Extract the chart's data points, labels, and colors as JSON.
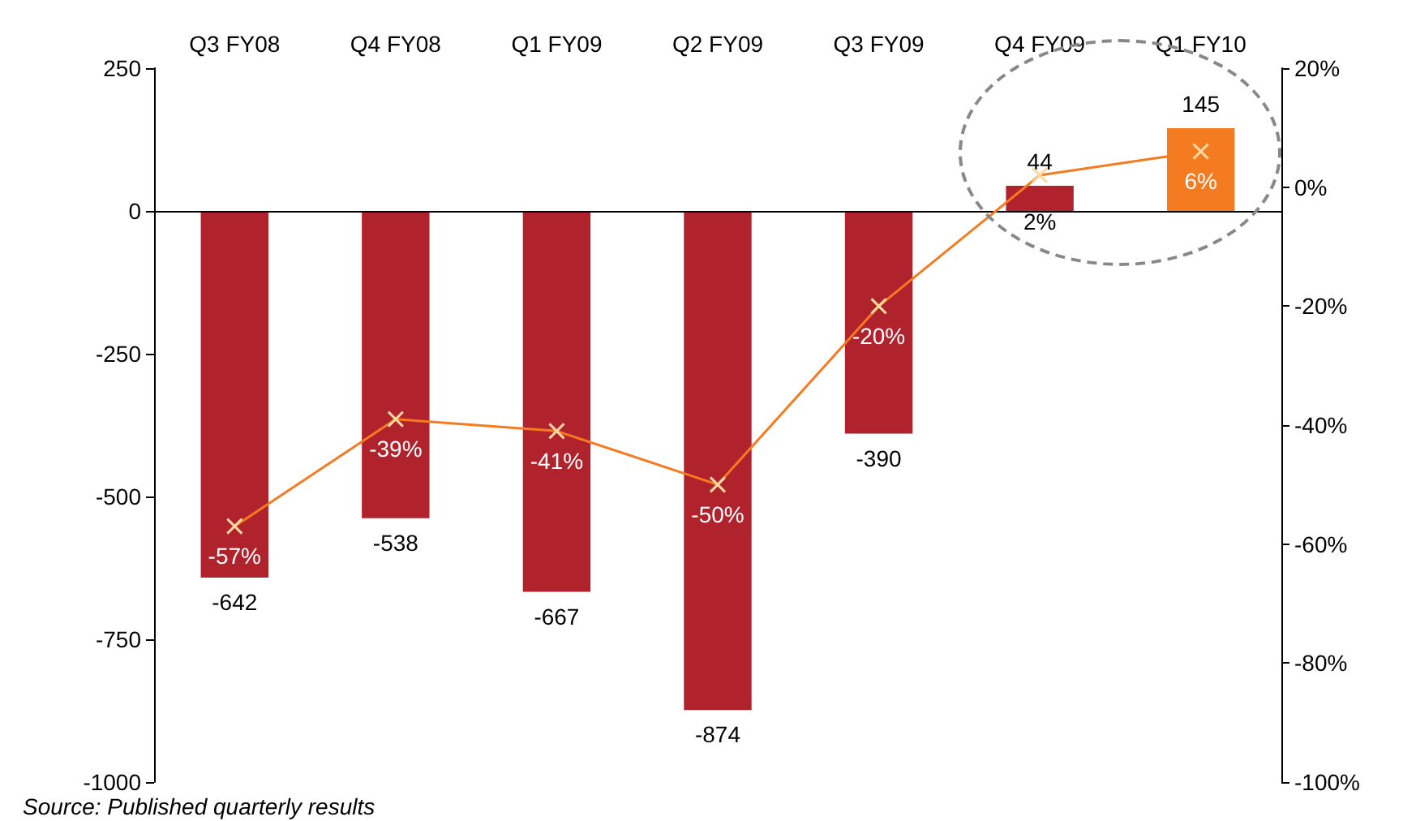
{
  "chart_data": {
    "type": "bar",
    "categories": [
      "Q3 FY08",
      "Q4 FY08",
      "Q1 FY09",
      "Q2 FY09",
      "Q3 FY09",
      "Q4 FY09",
      "Q1 FY10"
    ],
    "series": [
      {
        "colors": [
          "#b0222c",
          "#b0222c",
          "#b0222c",
          "#b0222c",
          "#b0222c",
          "#b0222c",
          "#f47b20"
        ],
        "values": [
          -642,
          -538,
          -667,
          -874,
          -390,
          44,
          145
        ],
        "data_labels": true
      },
      {
        "type": "line",
        "axis": "y2",
        "color": "#f47b20",
        "marker": "cross",
        "values": [
          -57,
          -39,
          -41,
          -50,
          -20,
          2,
          6
        ],
        "value_labels": [
          "-57%",
          "-39%",
          "-41%",
          "-50%",
          "-20%",
          "2%",
          "6%"
        ]
      }
    ],
    "ylim": [
      -1000,
      250
    ],
    "yticks": [
      -1000,
      -750,
      -500,
      -250,
      0,
      250
    ],
    "y2lim": [
      -100,
      20
    ],
    "y2ticks": [
      {
        "value": -100,
        "label": "-100%"
      },
      {
        "value": -80,
        "label": "-80%"
      },
      {
        "value": -60,
        "label": "-60%"
      },
      {
        "value": -40,
        "label": "-40%"
      },
      {
        "value": -20,
        "label": "-20%"
      },
      {
        "value": 0,
        "label": "0%"
      },
      {
        "value": 20,
        "label": "20%"
      }
    ],
    "ref_lines": [
      {
        "axis": "y",
        "value": 0,
        "color": "#000000"
      }
    ],
    "annotations": [
      "Source: Published quarterly results"
    ]
  }
}
